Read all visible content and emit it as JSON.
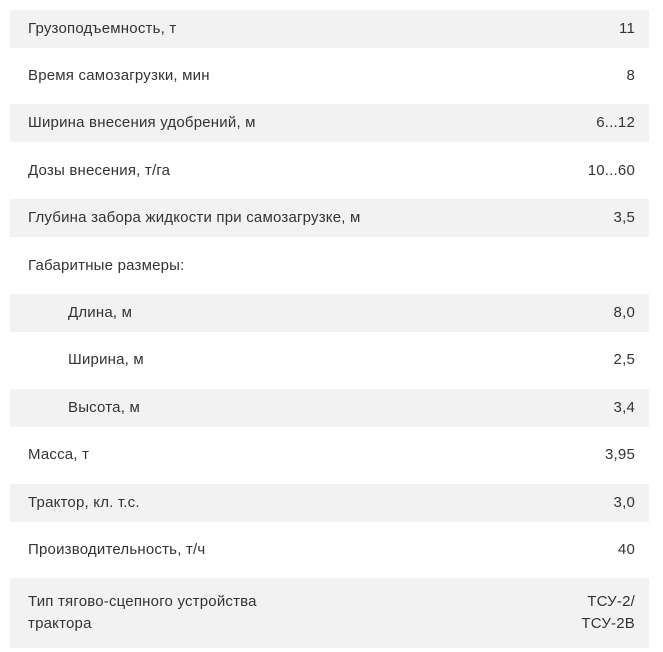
{
  "table": {
    "rows": [
      {
        "label": "Грузоподъемность, т",
        "value": "11"
      },
      {
        "label": "Время самозагрузки, мин",
        "value": "8"
      },
      {
        "label": "Ширина внесения удобрений, м",
        "value": "6...12"
      },
      {
        "label": "Дозы внесения, т/га",
        "value": "10...60"
      },
      {
        "label": "Глубина забора жидкости при самозагрузке, м",
        "value": "3,5"
      },
      {
        "label": "Габаритные размеры:",
        "value": ""
      },
      {
        "label": "Длина, м",
        "value": "8,0"
      },
      {
        "label": "Ширина, м",
        "value": "2,5"
      },
      {
        "label": "Высота, м",
        "value": "3,4"
      },
      {
        "label": "Масса, т",
        "value": "3,95"
      },
      {
        "label": "Трактор, кл. т.с.",
        "value": "3,0"
      },
      {
        "label": "Производительность, т/ч",
        "value": "40"
      },
      {
        "label": "Тип тягово-сцепного устройства\nтрактора",
        "value": "ТСУ-2/\nТСУ-2В"
      }
    ],
    "colors": {
      "shaded_row_bg": "#f2f2f2",
      "text": "#333333",
      "page_bg": "#ffffff"
    }
  }
}
